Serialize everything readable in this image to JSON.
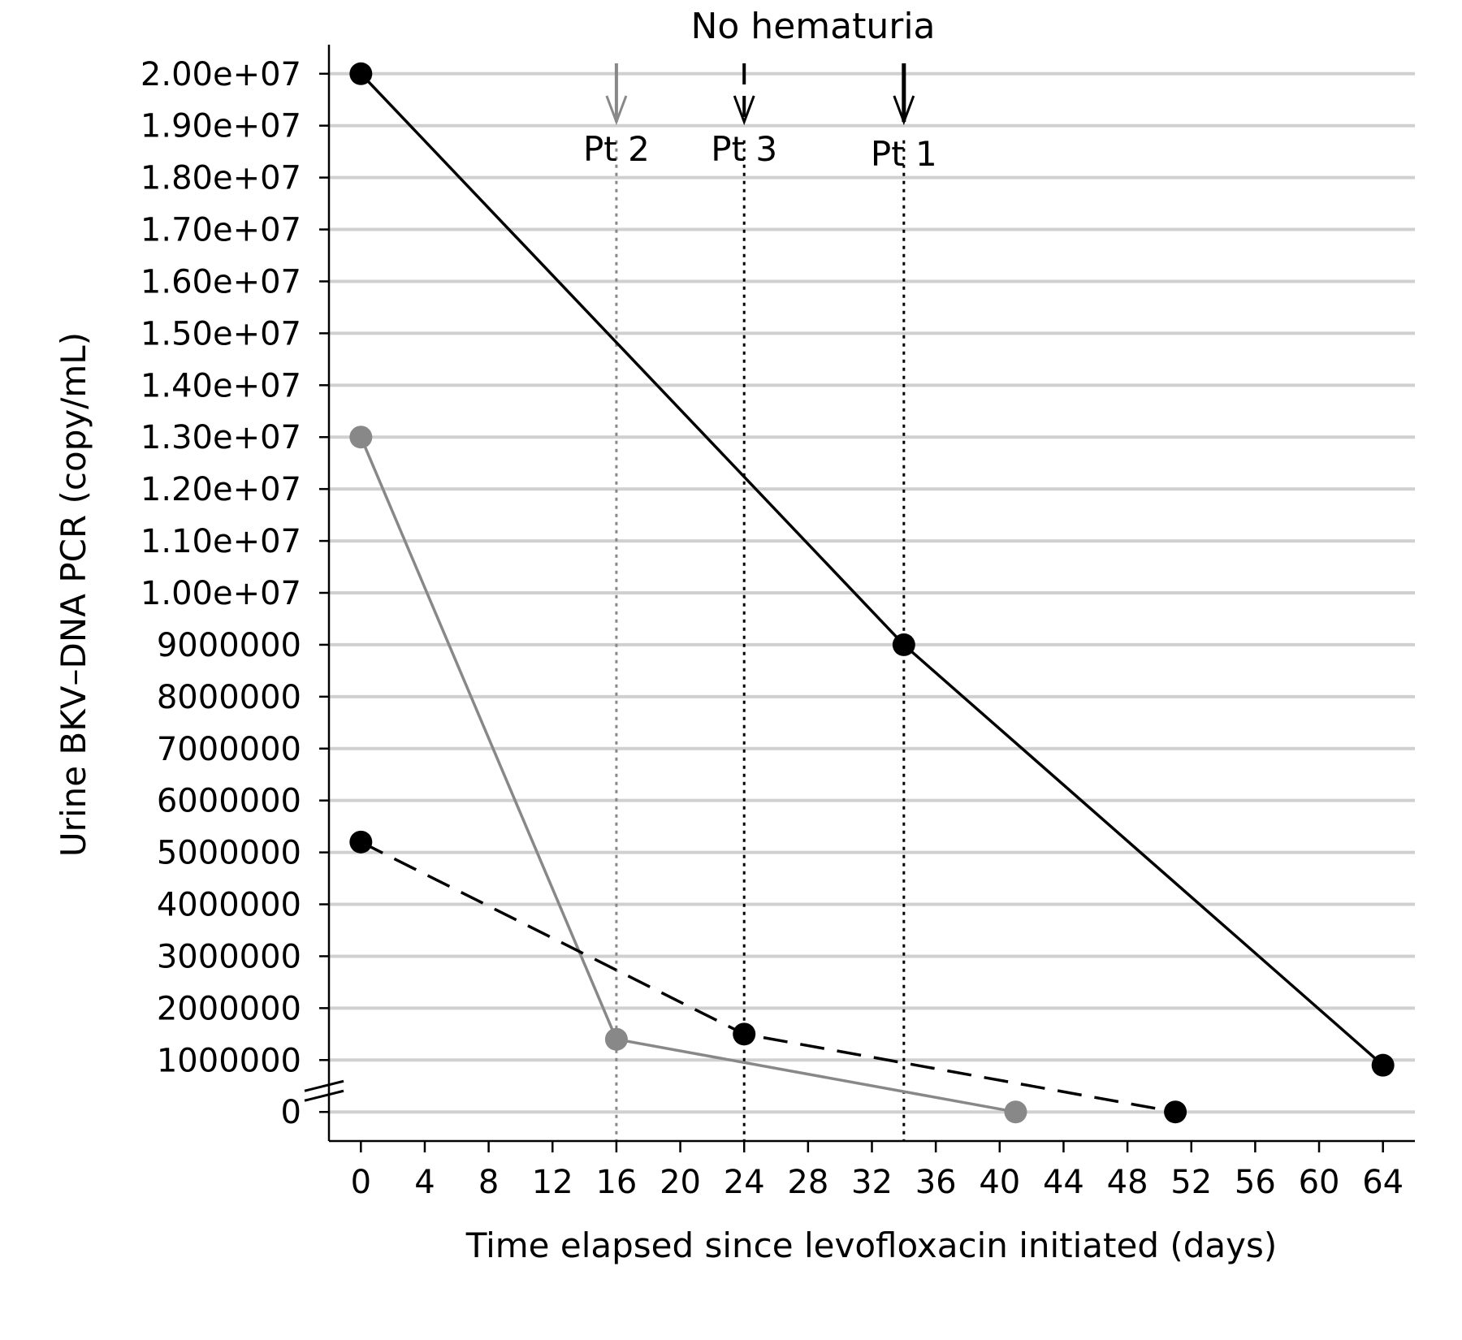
{
  "chart_data": {
    "type": "line",
    "title": "No hematuria",
    "xlabel": "Time elapsed since levofloxacin initiated (days)",
    "ylabel": "Urine BKV–DNA PCR (copy/mL)",
    "xlim": [
      -2,
      66
    ],
    "x_ticks": [
      0,
      4,
      8,
      12,
      16,
      20,
      24,
      28,
      32,
      36,
      40,
      44,
      48,
      52,
      56,
      60,
      64
    ],
    "ylim": [
      -560000,
      20560000
    ],
    "y_ticks": [
      {
        "value": 0,
        "label": "0"
      },
      {
        "value": 1000000,
        "label": "1000000"
      },
      {
        "value": 2000000,
        "label": "2000000"
      },
      {
        "value": 3000000,
        "label": "3000000"
      },
      {
        "value": 4000000,
        "label": "4000000"
      },
      {
        "value": 5000000,
        "label": "5000000"
      },
      {
        "value": 6000000,
        "label": "6000000"
      },
      {
        "value": 7000000,
        "label": "7000000"
      },
      {
        "value": 8000000,
        "label": "8000000"
      },
      {
        "value": 9000000,
        "label": "9000000"
      },
      {
        "value": 10000000,
        "label": "1.00e+07"
      },
      {
        "value": 11000000,
        "label": "1.10e+07"
      },
      {
        "value": 12000000,
        "label": "1.20e+07"
      },
      {
        "value": 13000000,
        "label": "1.30e+07"
      },
      {
        "value": 14000000,
        "label": "1.40e+07"
      },
      {
        "value": 15000000,
        "label": "1.50e+07"
      },
      {
        "value": 16000000,
        "label": "1.60e+07"
      },
      {
        "value": 17000000,
        "label": "1.70e+07"
      },
      {
        "value": 18000000,
        "label": "1.80e+07"
      },
      {
        "value": 19000000,
        "label": "1.90e+07"
      },
      {
        "value": 20000000,
        "label": "2.00e+07"
      }
    ],
    "grid": true,
    "axis_break": "between 0 and 1000000 on y-axis",
    "series": [
      {
        "x": [
          0,
          34,
          64
        ],
        "y": [
          20000000,
          9000000,
          900000
        ],
        "color": "#000000",
        "dash": "solid"
      },
      {
        "x": [
          0,
          16,
          41
        ],
        "y": [
          13000000,
          1400000,
          0
        ],
        "color": "#888888",
        "dash": "solid"
      },
      {
        "x": [
          0,
          24,
          51
        ],
        "y": [
          5200000,
          1500000,
          0
        ],
        "color": "#000000",
        "dash": "dashed"
      }
    ],
    "annotations": [
      {
        "label": "Pt 2",
        "x": 16,
        "color": "#888888",
        "line": "dotted"
      },
      {
        "label": "Pt 3",
        "x": 24,
        "color": "#000000",
        "line": "dotted",
        "arrow": "dashed"
      },
      {
        "label": "Pt 1",
        "x": 34,
        "color": "#000000",
        "line": "dotted",
        "arrow": "solid"
      }
    ]
  }
}
